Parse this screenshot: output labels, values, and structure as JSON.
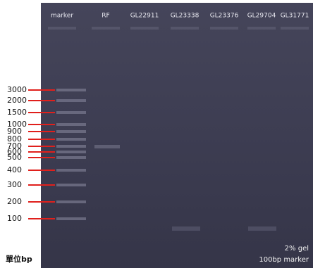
{
  "lanes": [
    "marker",
    "RF",
    "GL22911",
    "GL23338",
    "GL23376",
    "GL29704",
    "GL31771"
  ],
  "size_markers": [
    3000,
    2000,
    1500,
    1000,
    900,
    800,
    700,
    600,
    500,
    400,
    300,
    200,
    100
  ],
  "unit": "單位bp",
  "gel_note": "2% gel",
  "marker_note": "100bp marker"
}
